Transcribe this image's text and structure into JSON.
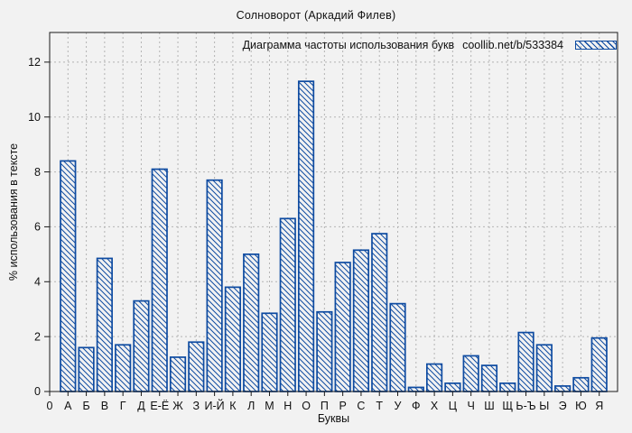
{
  "page": {
    "background": "#f2f2f2"
  },
  "chart_data": {
    "type": "bar",
    "title": "Солноворот (Аркадий Филев)",
    "legend": {
      "label": "Диаграмма частоты использования букв",
      "source": "coollib.net/b/533384",
      "position": "top-right"
    },
    "xlabel": "Буквы",
    "ylabel": "% использования в тексте",
    "x_origin_label": "0",
    "categories": [
      "А",
      "Б",
      "В",
      "Г",
      "Д",
      "Е-Ё",
      "Ж",
      "З",
      "И-Й",
      "К",
      "Л",
      "М",
      "Н",
      "О",
      "П",
      "Р",
      "С",
      "Т",
      "У",
      "Ф",
      "Х",
      "Ц",
      "Ч",
      "Ш",
      "Щ",
      "Ь-Ъ",
      "Ы",
      "Э",
      "Ю",
      "Я"
    ],
    "values": [
      8.4,
      1.6,
      4.85,
      1.7,
      3.3,
      8.1,
      1.25,
      1.8,
      7.7,
      3.8,
      5.0,
      2.85,
      6.3,
      11.3,
      2.9,
      4.7,
      5.15,
      5.75,
      3.2,
      0.15,
      1.0,
      0.3,
      1.3,
      0.95,
      0.3,
      2.15,
      1.7,
      0.2,
      0.5,
      1.95
    ],
    "yticks": [
      0,
      2,
      4,
      6,
      8,
      10,
      12
    ],
    "ylim": [
      0,
      13.08
    ],
    "grid": true,
    "hatch": "diagonal-backslash",
    "bar_color": "#0e4ba1",
    "grid_color": "#b4b4b4",
    "border_color": "#1a1a1a",
    "background": "#f2f2f2"
  }
}
